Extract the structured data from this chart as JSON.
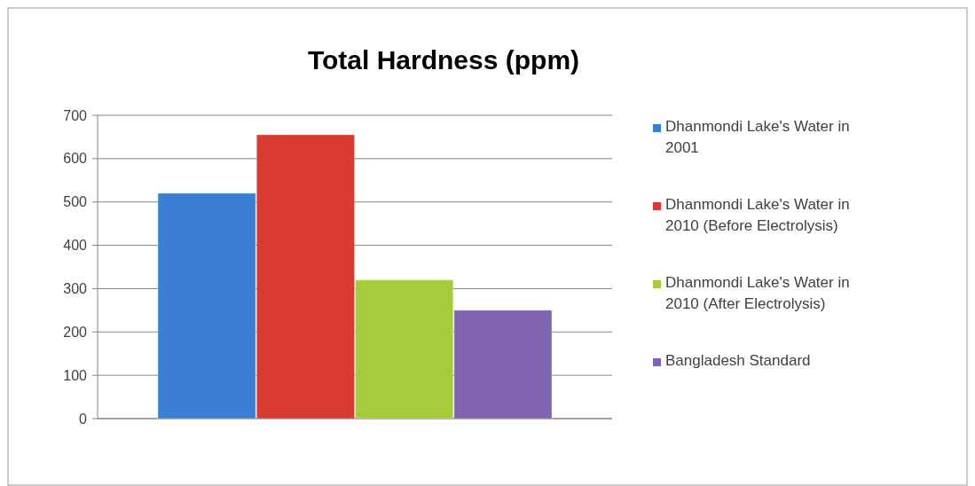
{
  "chart_data": {
    "type": "bar",
    "title": "Total Hardness (ppm)",
    "categories": [
      null
    ],
    "series": [
      {
        "name": "Dhanmondi Lake's Water in 2001",
        "color": "#3a7fd5",
        "values": [
          520
        ]
      },
      {
        "name": "Dhanmondi Lake's Water in 2010 (Before Electrolysis)",
        "color": "#d93a32",
        "values": [
          655
        ]
      },
      {
        "name": "Dhanmondi Lake's Water in 2010 (After Electrolysis)",
        "color": "#a6cc3c",
        "values": [
          320
        ]
      },
      {
        "name": "Bangladesh Standard",
        "color": "#8064b0",
        "values": [
          250
        ]
      }
    ],
    "ylim": [
      0,
      700
    ],
    "yticks": [
      0,
      100,
      200,
      300,
      400,
      500,
      600,
      700
    ],
    "grid": "y",
    "legend": "right"
  }
}
